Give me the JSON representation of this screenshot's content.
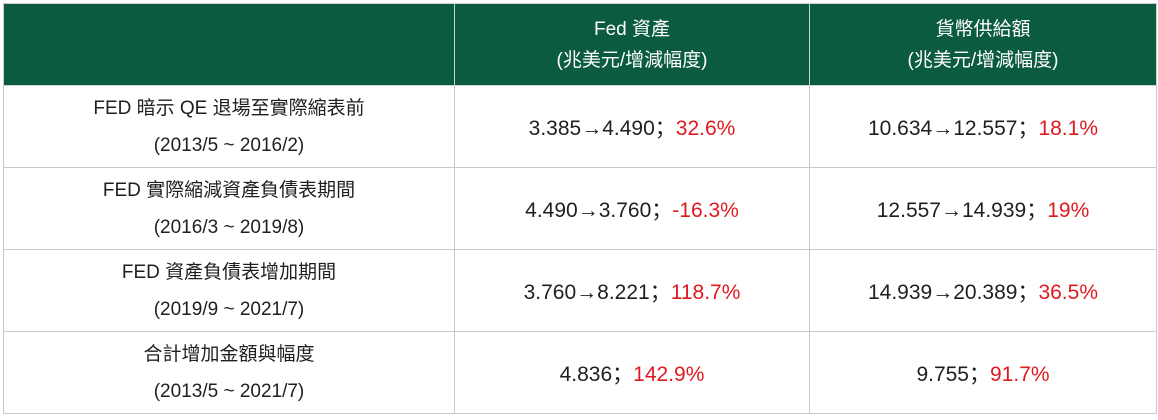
{
  "header": {
    "col1": "",
    "col2": {
      "line1": "Fed 資產",
      "line2": "(兆美元/增減幅度)"
    },
    "col3": {
      "line1": "貨幣供給額",
      "line2": "(兆美元/增減幅度)"
    }
  },
  "rows": [
    {
      "label1": "FED 暗示 QE 退場至實際縮表前",
      "label2": "(2013/5 ~ 2016/2)",
      "fed": {
        "range": "3.385→4.490；",
        "pct": "32.6%"
      },
      "m": {
        "range": "10.634→12.557；",
        "pct": "18.1%"
      }
    },
    {
      "label1": "FED 實際縮減資產負債表期間",
      "label2": "(2016/3 ~ 2019/8)",
      "fed": {
        "range": "4.490→3.760；",
        "pct": "-16.3%"
      },
      "m": {
        "range": "12.557→14.939；",
        "pct": "19%"
      }
    },
    {
      "label1": "FED 資產負債表增加期間",
      "label2": "(2019/9 ~ 2021/7)",
      "fed": {
        "range": "3.760→8.221；",
        "pct": "118.7%"
      },
      "m": {
        "range": "14.939→20.389；",
        "pct": "36.5%"
      }
    },
    {
      "label1": "合計增加金額與幅度",
      "label2": "(2013/5 ~ 2021/7)",
      "fed": {
        "range": "4.836；",
        "pct": "142.9%"
      },
      "m": {
        "range": "9.755；",
        "pct": "91.7%"
      }
    }
  ],
  "colors": {
    "header_bg": "#0b5b3f",
    "header_text": "#ffffff",
    "pct_text": "#e0191f"
  }
}
